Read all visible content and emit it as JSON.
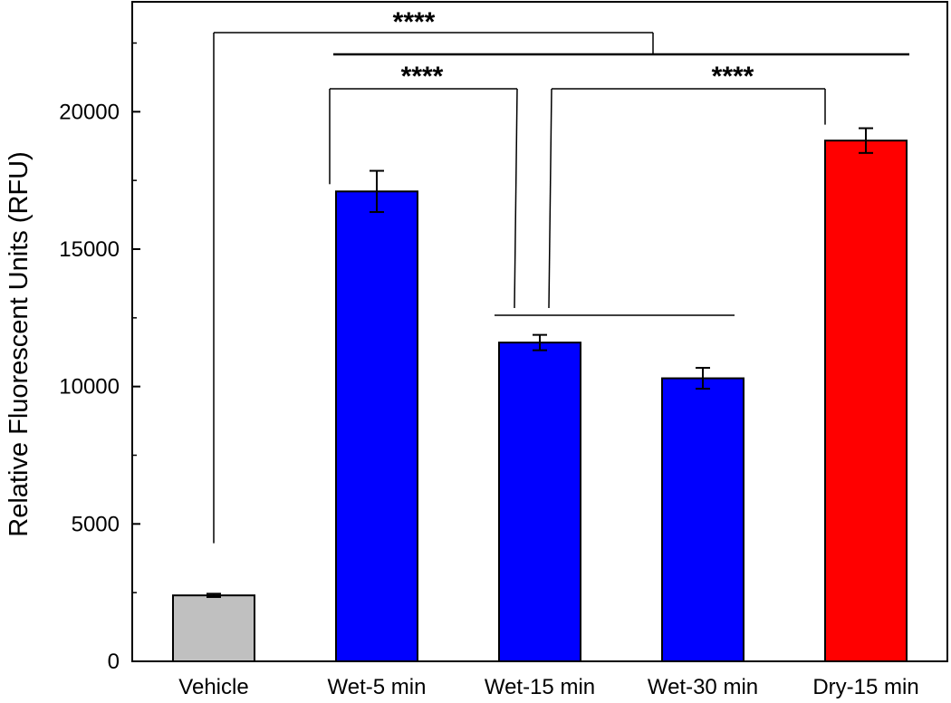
{
  "chart_data": {
    "type": "bar",
    "title": "",
    "xlabel": "",
    "ylabel": "Relative Fluorescent Units (RFU)",
    "ylim": [
      0,
      24000
    ],
    "yticks": [
      0,
      5000,
      10000,
      15000,
      20000
    ],
    "categories": [
      "Vehicle",
      "Wet-5 min",
      "Wet-15 min",
      "Wet-30 min",
      "Dry-15 min"
    ],
    "values": [
      2400,
      17100,
      11600,
      10300,
      18950
    ],
    "errors": [
      60,
      750,
      280,
      380,
      450
    ],
    "colors": [
      "#c0c0c0",
      "#0000ff",
      "#0000ff",
      "#0000ff",
      "#ff0000"
    ],
    "grid": false,
    "legend": "none",
    "significance": [
      {
        "label": "****",
        "from": "Vehicle",
        "to": "Wet-5 min … Dry-15 min"
      },
      {
        "label": "****",
        "from": "Wet-5 min",
        "to": "Wet-15 min, Wet-30 min"
      },
      {
        "label": "****",
        "from": "Wet-15 min, Wet-30 min",
        "to": "Dry-15 min"
      }
    ]
  }
}
